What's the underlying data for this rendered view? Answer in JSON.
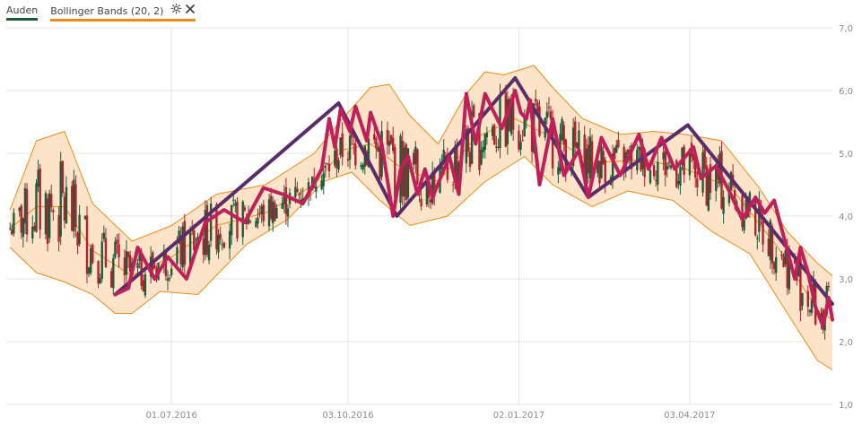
{
  "legend": {
    "series1_label": "Auden",
    "series2_label": "Bollinger Bands (20, 2)",
    "series1_color": "#1f5c3a",
    "series2_color": "#ef8a17",
    "tool_icons": [
      "gear-icon",
      "close-icon"
    ]
  },
  "chart_data": {
    "type": "line",
    "y_ticks": [
      "1,0",
      "2,0",
      "3,0",
      "4,0",
      "5,0",
      "6,0",
      "7,0"
    ],
    "y_tick_values": [
      1,
      2,
      3,
      4,
      5,
      6,
      7
    ],
    "ylim": [
      1,
      7
    ],
    "x_ticks": [
      "01.07.2016",
      "03.10.2016",
      "02.01.2017",
      "03.04.2017"
    ],
    "x_tick_dates": [
      "2016-07-01",
      "2016-10-03",
      "2017-01-02",
      "2017-04-03"
    ],
    "xlim": [
      "2016-04-04",
      "2017-06-18"
    ],
    "grid": true,
    "colors": {
      "candle_up": "#1f5c3a",
      "candle_down": "#b2212f",
      "band_fill": "#fde3c8",
      "band_line": "#ef8a17",
      "zigzag_fine": "#c0205a",
      "zigzag_coarse": "#5a2d6a",
      "grid": "#e3e3e3"
    },
    "zigzag_fine": [
      [
        "2016-06-01",
        2.75
      ],
      [
        "2016-06-08",
        2.85
      ],
      [
        "2016-06-13",
        3.5
      ],
      [
        "2016-06-22",
        3.0
      ],
      [
        "2016-06-29",
        3.35
      ],
      [
        "2016-07-09",
        3.0
      ],
      [
        "2016-07-19",
        3.9
      ],
      [
        "2016-07-29",
        4.1
      ],
      [
        "2016-08-09",
        3.9
      ],
      [
        "2016-08-19",
        4.45
      ],
      [
        "2016-08-29",
        4.35
      ],
      [
        "2016-09-09",
        4.2
      ],
      [
        "2016-09-19",
        4.75
      ],
      [
        "2016-09-23",
        5.55
      ],
      [
        "2016-09-26",
        5.1
      ],
      [
        "2016-09-29",
        5.7
      ],
      [
        "2016-10-04",
        5.35
      ],
      [
        "2016-10-07",
        5.75
      ],
      [
        "2016-10-13",
        5.2
      ],
      [
        "2016-10-15",
        5.65
      ],
      [
        "2016-10-21",
        5.15
      ],
      [
        "2016-10-27",
        4.0
      ],
      [
        "2016-10-31",
        4.75
      ],
      [
        "2016-11-04",
        4.95
      ],
      [
        "2016-11-09",
        4.35
      ],
      [
        "2016-11-13",
        4.75
      ],
      [
        "2016-11-17",
        4.3
      ],
      [
        "2016-11-26",
        4.95
      ],
      [
        "2016-12-01",
        4.35
      ],
      [
        "2016-12-05",
        5.95
      ],
      [
        "2016-12-10",
        5.15
      ],
      [
        "2016-12-15",
        5.95
      ],
      [
        "2016-12-19",
        5.7
      ],
      [
        "2016-12-24",
        5.4
      ],
      [
        "2016-12-31",
        6.0
      ],
      [
        "2017-01-03",
        5.65
      ],
      [
        "2017-01-06",
        5.55
      ],
      [
        "2017-01-08",
        5.85
      ],
      [
        "2017-01-13",
        4.5
      ],
      [
        "2017-01-20",
        5.55
      ],
      [
        "2017-01-26",
        4.65
      ],
      [
        "2017-02-03",
        5.05
      ],
      [
        "2017-02-08",
        4.3
      ],
      [
        "2017-02-15",
        5.25
      ],
      [
        "2017-02-25",
        4.65
      ],
      [
        "2017-03-07",
        5.3
      ],
      [
        "2017-03-12",
        4.75
      ],
      [
        "2017-03-19",
        5.25
      ],
      [
        "2017-03-26",
        4.75
      ],
      [
        "2017-04-05",
        5.1
      ],
      [
        "2017-04-09",
        4.6
      ],
      [
        "2017-04-17",
        4.8
      ],
      [
        "2017-04-24",
        4.4
      ],
      [
        "2017-05-01",
        3.95
      ],
      [
        "2017-05-08",
        4.3
      ],
      [
        "2017-05-13",
        4.05
      ],
      [
        "2017-05-18",
        4.25
      ],
      [
        "2017-05-29",
        3.0
      ],
      [
        "2017-06-01",
        3.5
      ],
      [
        "2017-06-05",
        3.1
      ],
      [
        "2017-06-09",
        2.55
      ],
      [
        "2017-06-13",
        2.25
      ],
      [
        "2017-06-16",
        2.7
      ],
      [
        "2017-06-18",
        2.35
      ]
    ],
    "zigzag_coarse": [
      [
        "2016-06-01",
        2.75
      ],
      [
        "2016-09-28",
        5.8
      ],
      [
        "2016-10-29",
        4.0
      ],
      [
        "2016-12-31",
        6.2
      ],
      [
        "2017-02-08",
        4.3
      ],
      [
        "2017-04-02",
        5.45
      ],
      [
        "2017-06-18",
        2.6
      ]
    ],
    "bollinger_upper": [
      [
        "2016-04-06",
        4.1
      ],
      [
        "2016-04-20",
        5.2
      ],
      [
        "2016-05-05",
        5.35
      ],
      [
        "2016-05-20",
        4.2
      ],
      [
        "2016-06-10",
        3.6
      ],
      [
        "2016-07-01",
        3.85
      ],
      [
        "2016-07-25",
        4.35
      ],
      [
        "2016-08-20",
        4.5
      ],
      [
        "2016-09-15",
        5.0
      ],
      [
        "2016-09-30",
        5.55
      ],
      [
        "2016-10-15",
        6.05
      ],
      [
        "2016-10-25",
        6.1
      ],
      [
        "2016-11-05",
        5.6
      ],
      [
        "2016-11-20",
        5.15
      ],
      [
        "2016-12-05",
        5.95
      ],
      [
        "2016-12-15",
        6.3
      ],
      [
        "2016-12-25",
        6.25
      ],
      [
        "2017-01-10",
        6.4
      ],
      [
        "2017-01-20",
        6.05
      ],
      [
        "2017-02-05",
        5.55
      ],
      [
        "2017-02-25",
        5.3
      ],
      [
        "2017-03-15",
        5.35
      ],
      [
        "2017-04-01",
        5.3
      ],
      [
        "2017-04-20",
        5.2
      ],
      [
        "2017-05-10",
        4.45
      ],
      [
        "2017-05-25",
        3.75
      ],
      [
        "2017-06-10",
        3.25
      ],
      [
        "2017-06-18",
        3.05
      ]
    ],
    "bollinger_lower": [
      [
        "2016-04-06",
        3.5
      ],
      [
        "2016-04-20",
        3.1
      ],
      [
        "2016-05-05",
        2.95
      ],
      [
        "2016-05-20",
        2.75
      ],
      [
        "2016-06-01",
        2.45
      ],
      [
        "2016-06-10",
        2.45
      ],
      [
        "2016-06-25",
        2.8
      ],
      [
        "2016-07-15",
        2.75
      ],
      [
        "2016-08-10",
        3.55
      ],
      [
        "2016-09-01",
        3.95
      ],
      [
        "2016-09-20",
        4.55
      ],
      [
        "2016-10-05",
        4.7
      ],
      [
        "2016-10-20",
        4.25
      ],
      [
        "2016-11-05",
        3.85
      ],
      [
        "2016-11-25",
        4.0
      ],
      [
        "2016-12-15",
        4.55
      ],
      [
        "2017-01-05",
        4.95
      ],
      [
        "2017-01-20",
        4.5
      ],
      [
        "2017-02-10",
        4.15
      ],
      [
        "2017-03-01",
        4.4
      ],
      [
        "2017-03-25",
        4.25
      ],
      [
        "2017-04-15",
        3.75
      ],
      [
        "2017-05-05",
        3.4
      ],
      [
        "2017-05-25",
        2.45
      ],
      [
        "2017-06-10",
        1.7
      ],
      [
        "2017-06-18",
        1.55
      ]
    ],
    "bollinger_middle": [
      [
        "2016-04-06",
        3.8
      ],
      [
        "2016-04-20",
        4.15
      ],
      [
        "2016-05-05",
        4.15
      ],
      [
        "2016-05-20",
        3.45
      ],
      [
        "2016-06-10",
        3.05
      ],
      [
        "2016-07-01",
        3.35
      ],
      [
        "2016-07-25",
        3.85
      ],
      [
        "2016-08-20",
        4.05
      ],
      [
        "2016-09-15",
        4.5
      ],
      [
        "2016-09-30",
        5.05
      ],
      [
        "2016-10-15",
        5.15
      ],
      [
        "2016-11-01",
        4.75
      ],
      [
        "2016-11-20",
        4.55
      ],
      [
        "2016-12-10",
        5.25
      ],
      [
        "2016-12-31",
        5.55
      ],
      [
        "2017-01-20",
        5.25
      ],
      [
        "2017-02-10",
        4.85
      ],
      [
        "2017-03-10",
        4.9
      ],
      [
        "2017-04-01",
        4.75
      ],
      [
        "2017-04-25",
        4.45
      ],
      [
        "2017-05-20",
        3.5
      ],
      [
        "2017-06-10",
        2.5
      ],
      [
        "2017-06-18",
        2.35
      ]
    ]
  }
}
